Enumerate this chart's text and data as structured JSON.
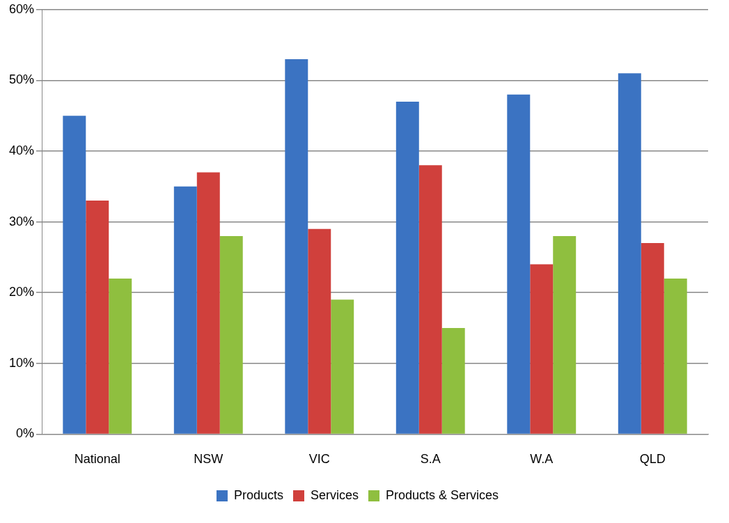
{
  "chart_data": {
    "type": "bar",
    "categories": [
      "National",
      "NSW",
      "VIC",
      "S.A",
      "W.A",
      "QLD"
    ],
    "series": [
      {
        "name": "Products",
        "color": "#3b73c2",
        "values": [
          45,
          35,
          53,
          47,
          48,
          51
        ]
      },
      {
        "name": "Services",
        "color": "#d0403c",
        "values": [
          33,
          37,
          29,
          38,
          24,
          27
        ]
      },
      {
        "name": "Products & Services",
        "color": "#8fbf3f",
        "values": [
          22,
          28,
          19,
          15,
          28,
          22
        ]
      }
    ],
    "ylim": [
      0,
      60
    ],
    "yticks": [
      {
        "value": 0,
        "label": "0%"
      },
      {
        "value": 10,
        "label": "10%"
      },
      {
        "value": 20,
        "label": "20%"
      },
      {
        "value": 30,
        "label": "30%"
      },
      {
        "value": 40,
        "label": "40%"
      },
      {
        "value": 50,
        "label": "50%"
      },
      {
        "value": 60,
        "label": "60%"
      }
    ],
    "grid": "y",
    "legend": "bottom"
  }
}
